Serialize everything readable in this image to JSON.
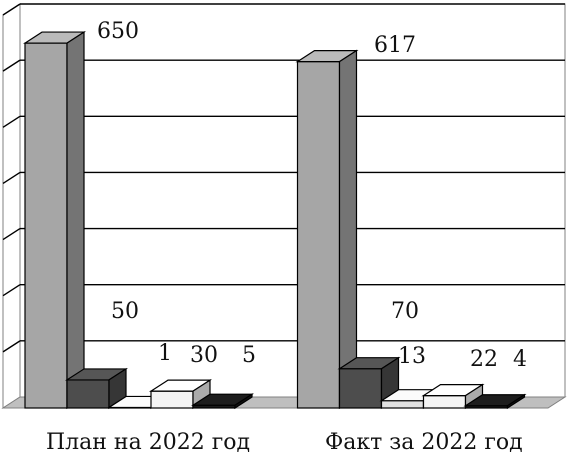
{
  "chart_data": {
    "type": "bar",
    "categories": [
      "План на 2022 год",
      "Факт за 2022 год"
    ],
    "series": [
      {
        "values": [
          650,
          617
        ]
      },
      {
        "values": [
          50,
          70
        ]
      },
      {
        "values": [
          1,
          13
        ]
      },
      {
        "values": [
          30,
          22
        ]
      },
      {
        "values": [
          5,
          4
        ]
      }
    ],
    "data_labels": [
      [
        "650",
        "617"
      ],
      [
        "50",
        "70"
      ],
      [
        "1",
        "13"
      ],
      [
        "30",
        "22"
      ],
      [
        "5",
        "4"
      ]
    ],
    "ylim": [
      0,
      700
    ],
    "grid": true,
    "three_d": true,
    "colors": {
      "series": [
        "#a6a6a6",
        "#4d4d4d",
        "#e0e0e0",
        "#f4f4f4",
        "#1a1a1a"
      ],
      "grid": "#000000",
      "wall": "#ffffff",
      "floor": "#bfbfbf"
    }
  }
}
